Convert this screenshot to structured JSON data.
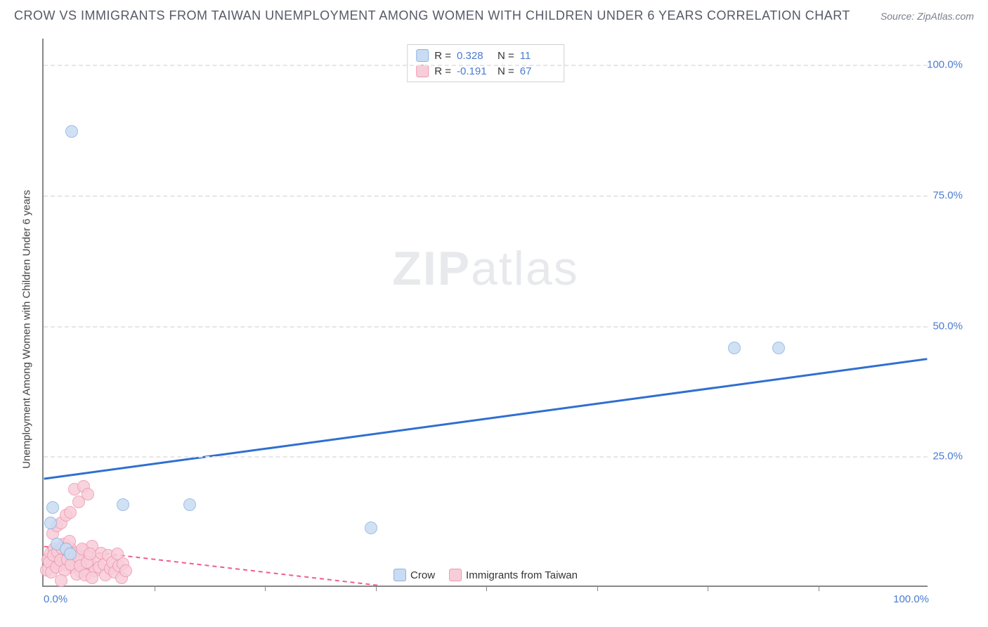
{
  "title": "CROW VS IMMIGRANTS FROM TAIWAN UNEMPLOYMENT AMONG WOMEN WITH CHILDREN UNDER 6 YEARS CORRELATION CHART",
  "source": "Source: ZipAtlas.com",
  "watermark_a": "ZIP",
  "watermark_b": "atlas",
  "y_axis_label": "Unemployment Among Women with Children Under 6 years",
  "chart": {
    "type": "scatter",
    "background_color": "#ffffff",
    "grid_color": "#e6e6e6",
    "axis_color": "#888888",
    "tick_label_color": "#4a7bd0",
    "xlim": [
      0,
      100
    ],
    "ylim": [
      0,
      105
    ],
    "yticks": [
      25,
      50,
      75,
      100
    ],
    "ytick_labels": [
      "25.0%",
      "50.0%",
      "75.0%",
      "100.0%"
    ],
    "xticks_major": [
      0,
      100
    ],
    "xtick_labels": [
      "0.0%",
      "100.0%"
    ],
    "xticks_minor": [
      12.5,
      25,
      37.5,
      50,
      62.5,
      75,
      87.5
    ],
    "marker_radius": 9,
    "marker_stroke_width": 1.5,
    "series": [
      {
        "name": "Crow",
        "fill": "#c9dcf3",
        "stroke": "#8bb3e3",
        "line_color": "#2f6fd0",
        "line_width": 3,
        "line_dash": "none",
        "r": "0.328",
        "n": "11",
        "trend": {
          "x1": 0,
          "y1": 20.5,
          "x2": 100,
          "y2": 43.5
        },
        "points": [
          {
            "x": 3.2,
            "y": 87.0
          },
          {
            "x": 1.0,
            "y": 15.0
          },
          {
            "x": 9.0,
            "y": 15.5
          },
          {
            "x": 16.5,
            "y": 15.5
          },
          {
            "x": 37.0,
            "y": 11.0
          },
          {
            "x": 78.0,
            "y": 45.5
          },
          {
            "x": 83.0,
            "y": 45.5
          },
          {
            "x": 1.5,
            "y": 8.0
          },
          {
            "x": 2.5,
            "y": 7.0
          },
          {
            "x": 0.8,
            "y": 12.0
          },
          {
            "x": 3.0,
            "y": 6.0
          }
        ]
      },
      {
        "name": "Immigrants from Taiwan",
        "fill": "#f7cdd9",
        "stroke": "#f098b0",
        "line_color": "#ef5d88",
        "line_width": 2,
        "line_dash": "6,5",
        "r": "-0.191",
        "n": "67",
        "trend": {
          "x1": 0,
          "y1": 7.5,
          "x2": 38,
          "y2": 0
        },
        "points": [
          {
            "x": 0.5,
            "y": 5.0
          },
          {
            "x": 0.8,
            "y": 6.2
          },
          {
            "x": 1.0,
            "y": 4.5
          },
          {
            "x": 1.2,
            "y": 7.0
          },
          {
            "x": 1.5,
            "y": 5.5
          },
          {
            "x": 1.7,
            "y": 3.8
          },
          {
            "x": 2.0,
            "y": 6.5
          },
          {
            "x": 2.3,
            "y": 8.0
          },
          {
            "x": 2.5,
            "y": 4.0
          },
          {
            "x": 2.8,
            "y": 5.8
          },
          {
            "x": 3.0,
            "y": 7.2
          },
          {
            "x": 3.2,
            "y": 3.5
          },
          {
            "x": 3.5,
            "y": 6.0
          },
          {
            "x": 3.8,
            "y": 4.8
          },
          {
            "x": 4.0,
            "y": 5.2
          },
          {
            "x": 4.2,
            "y": 2.5
          },
          {
            "x": 4.5,
            "y": 6.8
          },
          {
            "x": 4.8,
            "y": 3.0
          },
          {
            "x": 5.0,
            "y": 5.5
          },
          {
            "x": 5.3,
            "y": 4.2
          },
          {
            "x": 5.5,
            "y": 7.5
          },
          {
            "x": 5.8,
            "y": 2.8
          },
          {
            "x": 6.0,
            "y": 5.0
          },
          {
            "x": 6.3,
            "y": 3.5
          },
          {
            "x": 6.5,
            "y": 6.2
          },
          {
            "x": 6.8,
            "y": 4.0
          },
          {
            "x": 7.0,
            "y": 2.0
          },
          {
            "x": 7.3,
            "y": 5.8
          },
          {
            "x": 7.5,
            "y": 3.2
          },
          {
            "x": 7.8,
            "y": 4.5
          },
          {
            "x": 8.0,
            "y": 2.5
          },
          {
            "x": 8.3,
            "y": 6.0
          },
          {
            "x": 8.5,
            "y": 3.8
          },
          {
            "x": 8.8,
            "y": 1.5
          },
          {
            "x": 9.0,
            "y": 4.2
          },
          {
            "x": 9.3,
            "y": 2.8
          },
          {
            "x": 1.0,
            "y": 10.0
          },
          {
            "x": 1.5,
            "y": 11.5
          },
          {
            "x": 2.0,
            "y": 12.0
          },
          {
            "x": 2.5,
            "y": 13.5
          },
          {
            "x": 3.0,
            "y": 14.0
          },
          {
            "x": 3.5,
            "y": 18.5
          },
          {
            "x": 4.0,
            "y": 16.0
          },
          {
            "x": 4.5,
            "y": 19.0
          },
          {
            "x": 5.0,
            "y": 17.5
          },
          {
            "x": 0.3,
            "y": 3.0
          },
          {
            "x": 0.6,
            "y": 4.5
          },
          {
            "x": 0.9,
            "y": 2.5
          },
          {
            "x": 1.1,
            "y": 5.8
          },
          {
            "x": 1.4,
            "y": 3.5
          },
          {
            "x": 1.6,
            "y": 6.5
          },
          {
            "x": 1.9,
            "y": 4.8
          },
          {
            "x": 2.1,
            "y": 7.2
          },
          {
            "x": 2.4,
            "y": 3.0
          },
          {
            "x": 2.7,
            "y": 5.0
          },
          {
            "x": 2.9,
            "y": 8.5
          },
          {
            "x": 3.1,
            "y": 4.0
          },
          {
            "x": 3.4,
            "y": 6.2
          },
          {
            "x": 3.7,
            "y": 2.2
          },
          {
            "x": 3.9,
            "y": 5.5
          },
          {
            "x": 4.1,
            "y": 3.8
          },
          {
            "x": 4.4,
            "y": 7.0
          },
          {
            "x": 4.7,
            "y": 2.0
          },
          {
            "x": 4.9,
            "y": 4.5
          },
          {
            "x": 5.2,
            "y": 6.0
          },
          {
            "x": 2.0,
            "y": 1.0
          },
          {
            "x": 5.5,
            "y": 1.5
          }
        ]
      }
    ]
  },
  "legend_top": {
    "r_label": "R =",
    "n_label": "N ="
  },
  "legend_bottom_labels": [
    "Crow",
    "Immigrants from Taiwan"
  ]
}
